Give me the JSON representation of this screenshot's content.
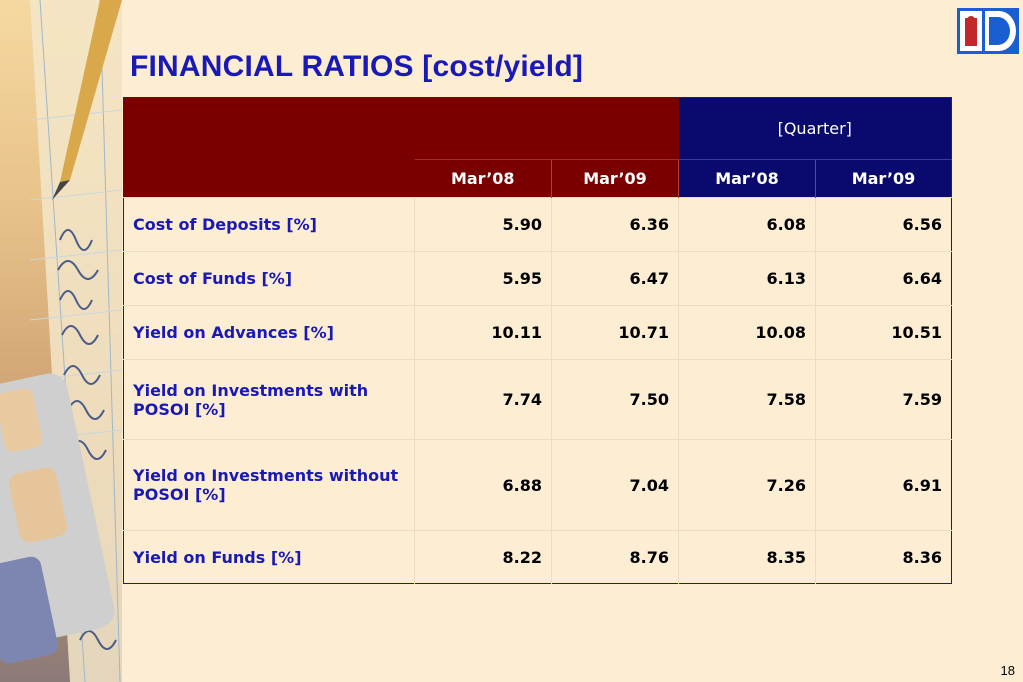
{
  "slide": {
    "title": "FINANCIAL RATIOS [cost/yield]",
    "page_number": "18"
  },
  "colors": {
    "title": "#1919b5",
    "header_red": "#7a0000",
    "header_blue": "#0a0a6e",
    "background": "#fdeed3",
    "label_text": "#1919b5"
  },
  "logo": {
    "icon": "bank-logo-icon"
  },
  "table": {
    "quarter_header": "[Quarter]",
    "columns": [
      "Mar’08",
      "Mar’09",
      "Mar’08",
      "Mar’09"
    ],
    "rows": [
      {
        "label": "Cost of Deposits [%]",
        "values": [
          "5.90",
          "6.36",
          "6.08",
          "6.56"
        ]
      },
      {
        "label": "Cost of Funds [%]",
        "values": [
          "5.95",
          "6.47",
          "6.13",
          "6.64"
        ]
      },
      {
        "label": "Yield on Advances [%]",
        "values": [
          "10.11",
          "10.71",
          "10.08",
          "10.51"
        ]
      },
      {
        "label": "Yield on Investments with POSOI [%]",
        "values": [
          "7.74",
          "7.50",
          "7.58",
          "7.59"
        ]
      },
      {
        "label": "Yield on Investments without POSOI [%]",
        "values": [
          "6.88",
          "7.04",
          "7.26",
          "6.91"
        ]
      },
      {
        "label": "Yield on Funds [%]",
        "values": [
          "8.22",
          "8.76",
          "8.35",
          "8.36"
        ]
      }
    ]
  }
}
